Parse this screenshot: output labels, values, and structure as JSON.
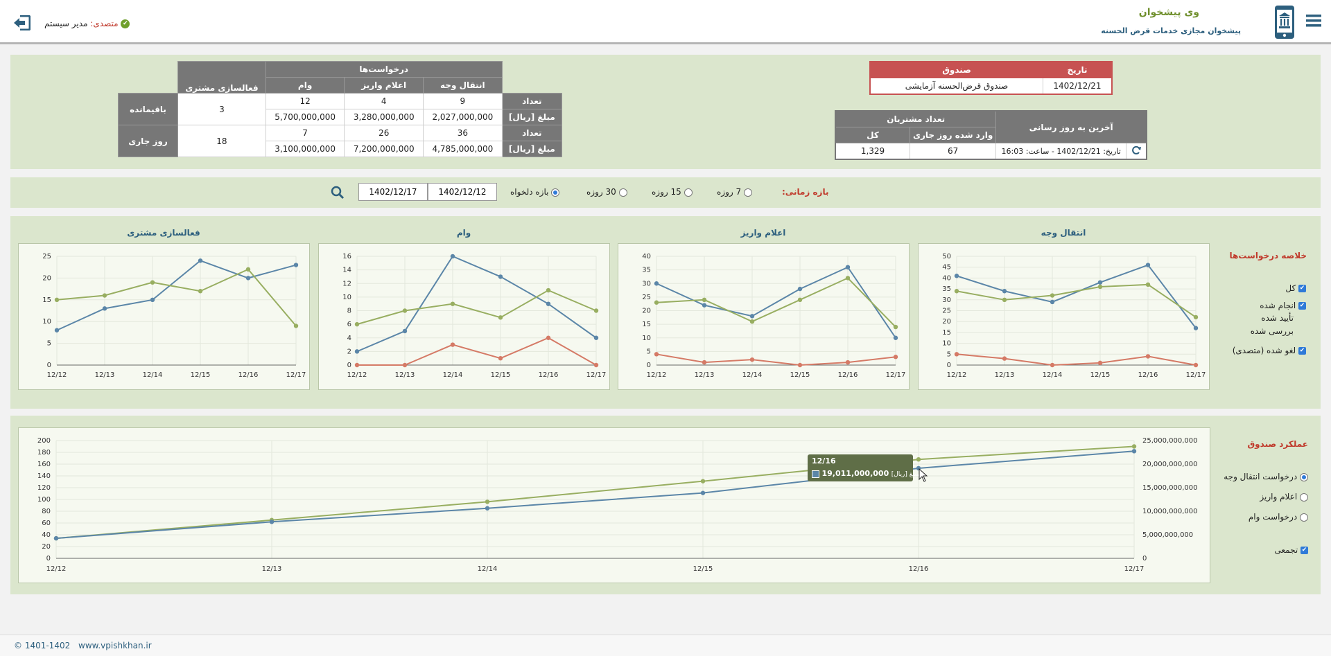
{
  "header": {
    "app_name": "وی پیشخوان",
    "app_subtitle": "پیشخوان مجازی خدمات قرض الحسنه",
    "user_role_label": "متصدی:",
    "user_name": "مدیر سیستم"
  },
  "fund_table": {
    "col_fund": "صندوق",
    "col_date": "تاریخ",
    "fund_name": "صندوق قرض‌الحسنه آزمایشی",
    "date": "1402/12/21"
  },
  "customers_table": {
    "title": "تعداد مشتریان",
    "col_total": "کل",
    "col_today": "وارد شده روز جاری",
    "col_last_update": "آخرین به روز رسانی",
    "total": "1,329",
    "today": "67",
    "last_update": "تاریخ: 1402/12/21 - ساعت: 16:03"
  },
  "requests_table": {
    "title": "درخواست‌ها",
    "col_transfer": "انتقال وجه",
    "col_deposit": "اعلام واریز",
    "col_loan": "وام",
    "col_activation": "فعالسازی مشتری",
    "row_count": "تعداد",
    "row_amount": "مبلغ [ریال]",
    "group_remaining": "باقیمانده",
    "group_today": "روز جاری",
    "remaining": {
      "transfer_count": "9",
      "deposit_count": "4",
      "loan_count": "12",
      "transfer_amount": "2,027,000,000",
      "deposit_amount": "3,280,000,000",
      "loan_amount": "5,700,000,000",
      "activation": "3"
    },
    "today": {
      "transfer_count": "36",
      "deposit_count": "26",
      "loan_count": "7",
      "transfer_amount": "4,785,000,000",
      "deposit_amount": "7,200,000,000",
      "loan_amount": "3,100,000,000",
      "activation": "18"
    }
  },
  "filter": {
    "label": "بازه زمانی:",
    "options": [
      "7 روزه",
      "15 روزه",
      "30 روزه",
      "بازه دلخواه"
    ],
    "selected": "بازه دلخواه",
    "date_from": "1402/12/12",
    "date_to": "1402/12/17"
  },
  "summary_legend": {
    "title": "خلاصه درخواست‌ها",
    "items": [
      "کل",
      "انجام شده",
      "تأیید شده",
      "بررسی شده",
      "لغو شده (متصدی)"
    ]
  },
  "small_charts_titles": [
    "انتقال وجه",
    "اعلام واریز",
    "وام",
    "فعالسازی مشتری"
  ],
  "performance": {
    "title": "عملکرد صندوق",
    "options": [
      "درخواست انتقال وجه",
      "اعلام واریز",
      "درخواست وام"
    ],
    "selected": "درخواست انتقال وجه",
    "cumulative_label": "تجمعی",
    "tooltip_title": "12/16",
    "tooltip_label": "مبلغ [ریال]:",
    "tooltip_value": "19,011,000,000"
  },
  "colors": {
    "blue": "#5b86a8",
    "green": "#98ae61",
    "red": "#d57a66"
  },
  "footer": {
    "copyright": "© 1401-1402",
    "site": "www.vpishkhan.ir"
  },
  "chart_data": [
    {
      "type": "line",
      "title": "انتقال وجه",
      "x": [
        "12/12",
        "12/13",
        "12/14",
        "12/15",
        "12/16",
        "12/17"
      ],
      "ylim": [
        0,
        50
      ],
      "yticks": [
        0,
        5,
        10,
        15,
        20,
        25,
        30,
        35,
        40,
        45,
        50
      ],
      "series": [
        {
          "color": "#5b86a8",
          "values": [
            41,
            34,
            29,
            38,
            46,
            17
          ]
        },
        {
          "color": "#98ae61",
          "values": [
            34,
            30,
            32,
            36,
            37,
            22
          ]
        },
        {
          "color": "#d57a66",
          "values": [
            5,
            3,
            0,
            1,
            4,
            0
          ]
        }
      ]
    },
    {
      "type": "line",
      "title": "اعلام واریز",
      "x": [
        "12/12",
        "12/13",
        "12/14",
        "12/15",
        "12/16",
        "12/17"
      ],
      "ylim": [
        0,
        40
      ],
      "yticks": [
        0,
        5,
        10,
        15,
        20,
        25,
        30,
        35,
        40
      ],
      "series": [
        {
          "color": "#5b86a8",
          "values": [
            30,
            22,
            18,
            28,
            36,
            10
          ]
        },
        {
          "color": "#98ae61",
          "values": [
            23,
            24,
            16,
            24,
            32,
            14
          ]
        },
        {
          "color": "#d57a66",
          "values": [
            4,
            1,
            2,
            0,
            1,
            3
          ]
        }
      ]
    },
    {
      "type": "line",
      "title": "وام",
      "x": [
        "12/12",
        "12/13",
        "12/14",
        "12/15",
        "12/16",
        "12/17"
      ],
      "ylim": [
        0,
        16
      ],
      "yticks": [
        0,
        2,
        4,
        6,
        8,
        10,
        12,
        14,
        16
      ],
      "series": [
        {
          "color": "#5b86a8",
          "values": [
            2,
            5,
            16,
            13,
            9,
            4
          ]
        },
        {
          "color": "#98ae61",
          "values": [
            6,
            8,
            9,
            7,
            11,
            8
          ]
        },
        {
          "color": "#d57a66",
          "values": [
            0,
            0,
            3,
            1,
            4,
            0
          ]
        }
      ]
    },
    {
      "type": "line",
      "title": "فعالسازی مشتری",
      "x": [
        "12/12",
        "12/13",
        "12/14",
        "12/15",
        "12/16",
        "12/17"
      ],
      "ylim": [
        0,
        25
      ],
      "yticks": [
        0,
        5,
        10,
        15,
        20,
        25
      ],
      "series": [
        {
          "color": "#5b86a8",
          "values": [
            8,
            13,
            15,
            24,
            20,
            23
          ]
        },
        {
          "color": "#98ae61",
          "values": [
            15,
            16,
            19,
            17,
            22,
            9
          ]
        }
      ]
    },
    {
      "type": "line",
      "title": "عملکرد صندوق",
      "x": [
        "12/12",
        "12/13",
        "12/14",
        "12/15",
        "12/16",
        "12/17"
      ],
      "ylim_left": [
        0,
        200
      ],
      "yticks_left": [
        0,
        20,
        40,
        60,
        80,
        100,
        120,
        140,
        160,
        180,
        200
      ],
      "ylim_right": [
        0,
        25000000000
      ],
      "yticks_right": [
        "0",
        "5,000,000,000",
        "10,000,000,000",
        "15,000,000,000",
        "20,000,000,000",
        "25,000,000,000"
      ],
      "series": [
        {
          "color": "#98ae61",
          "values": [
            34,
            65,
            96,
            131,
            168,
            190
          ]
        },
        {
          "color": "#5b86a8",
          "values": [
            34,
            62,
            85,
            111,
            153,
            182
          ]
        }
      ]
    }
  ]
}
